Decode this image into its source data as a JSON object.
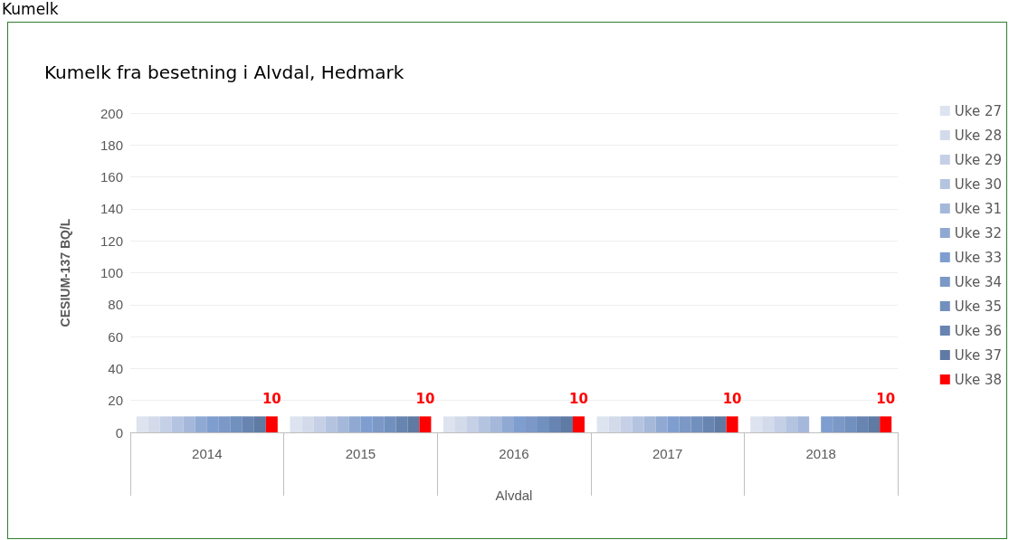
{
  "chart_data": {
    "type": "bar",
    "title": "Kumelk fra besetning i Alvdal, Hedmark",
    "annotations": [
      "Kumelk"
    ],
    "xlabel": "Alvdal",
    "ylabel": "CESIUM-137 BQ/L",
    "categories": [
      "2014",
      "2015",
      "2016",
      "2017",
      "2018"
    ],
    "series": [
      {
        "name": "Uke 27",
        "color": "#dde3ef",
        "values": [
          10,
          10,
          10,
          10,
          10
        ]
      },
      {
        "name": "Uke 28",
        "color": "#d3dbeb",
        "values": [
          10,
          10,
          10,
          10,
          10
        ]
      },
      {
        "name": "Uke 29",
        "color": "#c5d0e6",
        "values": [
          10,
          10,
          10,
          10,
          10
        ]
      },
      {
        "name": "Uke 30",
        "color": "#b4c4e0",
        "values": [
          10,
          10,
          10,
          10,
          10
        ]
      },
      {
        "name": "Uke 31",
        "color": "#a5b8da",
        "values": [
          10,
          10,
          10,
          10,
          10
        ]
      },
      {
        "name": "Uke 32",
        "color": "#8fa9d3",
        "values": [
          10,
          10,
          10,
          10,
          null
        ]
      },
      {
        "name": "Uke 33",
        "color": "#7f9ecf",
        "values": [
          10,
          10,
          10,
          10,
          10
        ]
      },
      {
        "name": "Uke 34",
        "color": "#7b98c6",
        "values": [
          10,
          10,
          10,
          10,
          10
        ]
      },
      {
        "name": "Uke 35",
        "color": "#7290bd",
        "values": [
          10,
          10,
          10,
          10,
          10
        ]
      },
      {
        "name": "Uke 36",
        "color": "#6884b0",
        "values": [
          10,
          10,
          10,
          10,
          10
        ]
      },
      {
        "name": "Uke 37",
        "color": "#5f7aa3",
        "values": [
          10,
          10,
          10,
          10,
          10
        ]
      },
      {
        "name": "Uke 38",
        "color": "#ff0000",
        "values": [
          10,
          10,
          10,
          10,
          10
        ],
        "value_labels": [
          "10",
          "10",
          "10",
          "10",
          "10"
        ]
      }
    ],
    "ylim": [
      0,
      200
    ],
    "yticks": [
      0,
      20,
      40,
      60,
      80,
      100,
      120,
      140,
      160,
      180,
      200
    ],
    "grid": "y",
    "legend": "right"
  }
}
